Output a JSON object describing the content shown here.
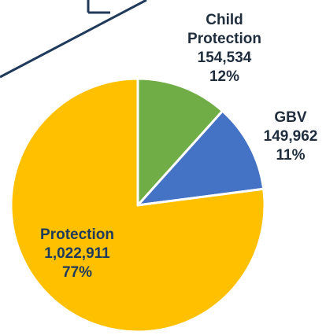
{
  "chart_data": {
    "type": "pie",
    "title": "",
    "slices": [
      {
        "name": "Child Protection",
        "value_label": "154,534",
        "value": 154534,
        "percent_label": "12%",
        "percent": 12,
        "color": "#70ad47",
        "label_color": "#1f2d3d"
      },
      {
        "name": "GBV",
        "value_label": "149,962",
        "value": 149962,
        "percent_label": "11%",
        "percent": 11,
        "color": "#4472c4",
        "label_color": "#1f2d3d"
      },
      {
        "name": "Protection",
        "value_label": "1,022,911",
        "value": 1022911,
        "percent_label": "77%",
        "percent": 77,
        "color": "#ffc000",
        "label_color": "#1f3a5a"
      }
    ],
    "start_angle_deg": 0,
    "direction": "clockwise",
    "slice_border_color": "#ffffff"
  }
}
